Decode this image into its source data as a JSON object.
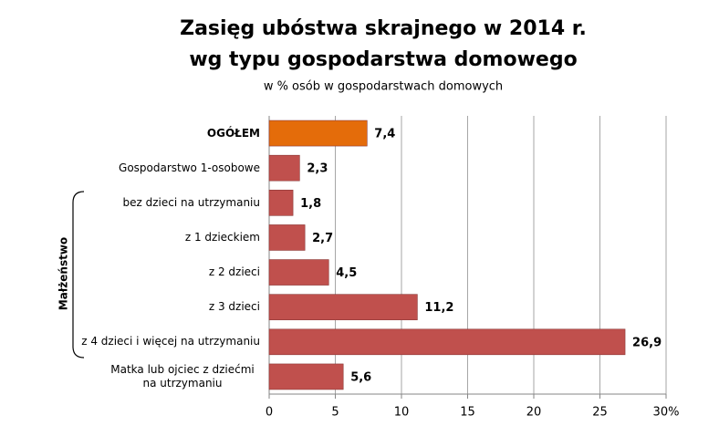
{
  "chart_data": {
    "type": "bar",
    "orientation": "horizontal",
    "title": [
      "Zasięg ubóstwa skrajnego w 2014 r.",
      "wg typu gospodarstwa domowego"
    ],
    "subtitle": "w % osób w gospodarstwach domowych",
    "categories": [
      "OGÓŁEM",
      "Gospodarstwo 1-osobowe",
      "bez dzieci na utrzymaniu",
      "z 1 dzieckiem",
      "z 2 dzieci",
      "z 3 dzieci",
      "z 4 dzieci i więcej na utrzymaniu",
      "Matka lub ojciec z dziećmi na utrzymaniu"
    ],
    "values": [
      7.4,
      2.3,
      1.8,
      2.7,
      4.5,
      11.2,
      26.9,
      5.6
    ],
    "value_labels": [
      "7,4",
      "2,3",
      "1,8",
      "2,7",
      "4,5",
      "11,2",
      "26,9",
      "5,6"
    ],
    "colors": [
      "#e46c0a",
      "#c0504d",
      "#c0504d",
      "#c0504d",
      "#c0504d",
      "#c0504d",
      "#c0504d",
      "#c0504d"
    ],
    "xlim": [
      0,
      30
    ],
    "xticks": [
      0,
      5,
      10,
      15,
      20,
      25,
      {
        "value": 30,
        "label": "30%"
      }
    ],
    "grid": true,
    "annotations": [
      "Małżeństwo"
    ]
  }
}
